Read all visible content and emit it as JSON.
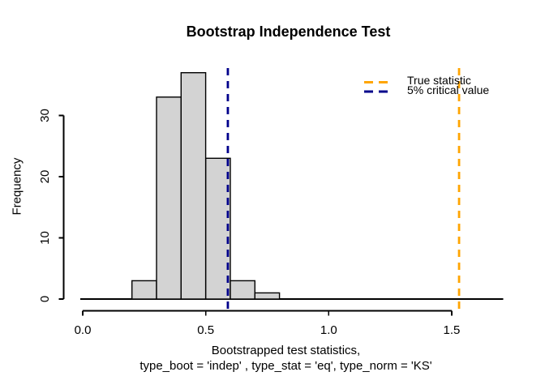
{
  "title": "Bootstrap Independence Test",
  "y_axis_label": "Frequency",
  "x_axis_label_line1": "Bootstrapped test statistics,",
  "x_axis_label_line2": "type_boot = 'indep' , type_stat = 'eq', type_norm = 'KS'",
  "legend": {
    "position": "top-right",
    "items": [
      {
        "label": "True statistic",
        "color": "#FFA500",
        "line_style": "dashed"
      },
      {
        "label": "5% critical value",
        "color": "#00008B",
        "line_style": "dashed"
      }
    ]
  },
  "chart_data": {
    "type": "bar",
    "subtype": "histogram",
    "title": "Bootstrap Independence Test",
    "xlabel": "Bootstrapped test statistics, type_boot = 'indep' , type_stat = 'eq', type_norm = 'KS'",
    "ylabel": "Frequency",
    "bin_breaks": [
      0.2,
      0.3,
      0.4,
      0.5,
      0.6,
      0.7,
      0.8
    ],
    "counts": [
      3,
      33,
      37,
      23,
      3,
      1
    ],
    "n_total": 100,
    "bar_fill": "#D3D3D3",
    "bar_stroke": "#000000",
    "xlim": [
      0,
      1.7
    ],
    "ylim": [
      0,
      37
    ],
    "grid": false,
    "x_ticks": {
      "values": [
        0,
        0.5,
        1.0,
        1.5
      ],
      "labels": [
        "0.0",
        "0.5",
        "1.0",
        "1.5"
      ]
    },
    "y_ticks": {
      "values": [
        0,
        10,
        20,
        30
      ],
      "labels": [
        "0",
        "10",
        "20",
        "30"
      ]
    },
    "zero_line": {
      "y": 0,
      "x_start": -0.01,
      "x_end": 1.71
    },
    "vlines": [
      {
        "name": "true-statistic-line",
        "x": 1.53,
        "color": "#FFA500",
        "style": "dashed",
        "legend": "True statistic"
      },
      {
        "name": "critical-value-line",
        "x": 0.59,
        "color": "#00008B",
        "style": "dashed",
        "legend": "5% critical value"
      }
    ]
  }
}
